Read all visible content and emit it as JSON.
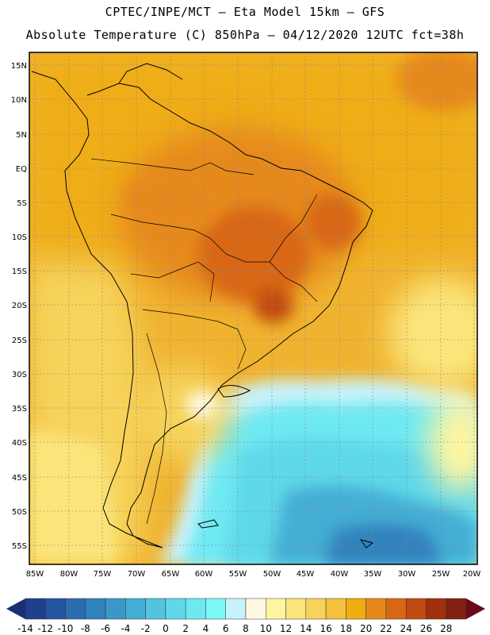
{
  "header": {
    "line1": "CPTEC/INPE/MCT –  Eta Model 15km – GFS",
    "line2": "Absolute Temperature (C) 850hPa – 04/12/2020 12UTC fct=38h"
  },
  "map": {
    "lat_labels": [
      "15N",
      "10N",
      "5N",
      "EQ",
      "5S",
      "10S",
      "15S",
      "20S",
      "25S",
      "30S",
      "35S",
      "40S",
      "45S",
      "50S",
      "55S"
    ],
    "lon_labels": [
      "85W",
      "80W",
      "75W",
      "70W",
      "65W",
      "60W",
      "55W",
      "50W",
      "45W",
      "40W",
      "35W",
      "30W",
      "25W",
      "20W"
    ]
  },
  "colorbar": {
    "labels": [
      "-14",
      "-12",
      "-10",
      "-8",
      "-6",
      "-4",
      "-2",
      "0",
      "2",
      "4",
      "6",
      "8",
      "10",
      "12",
      "14",
      "16",
      "18",
      "20",
      "22",
      "24",
      "26",
      "28"
    ],
    "colors": [
      "#1f3f8f",
      "#2456a0",
      "#2b6cb0",
      "#3182bd",
      "#3a98c8",
      "#45aed4",
      "#52c4e0",
      "#5fd8ea",
      "#6ee9f2",
      "#7ef7f9",
      "#c8f2fa",
      "#fff8e0",
      "#fff5a0",
      "#fbe57a",
      "#f6d35a",
      "#f3c13b",
      "#efad12",
      "#e6891a",
      "#d86815",
      "#c14a10",
      "#a2300c",
      "#802010"
    ],
    "under_color": "#1a2f74",
    "over_color": "#6a0a1c"
  }
}
